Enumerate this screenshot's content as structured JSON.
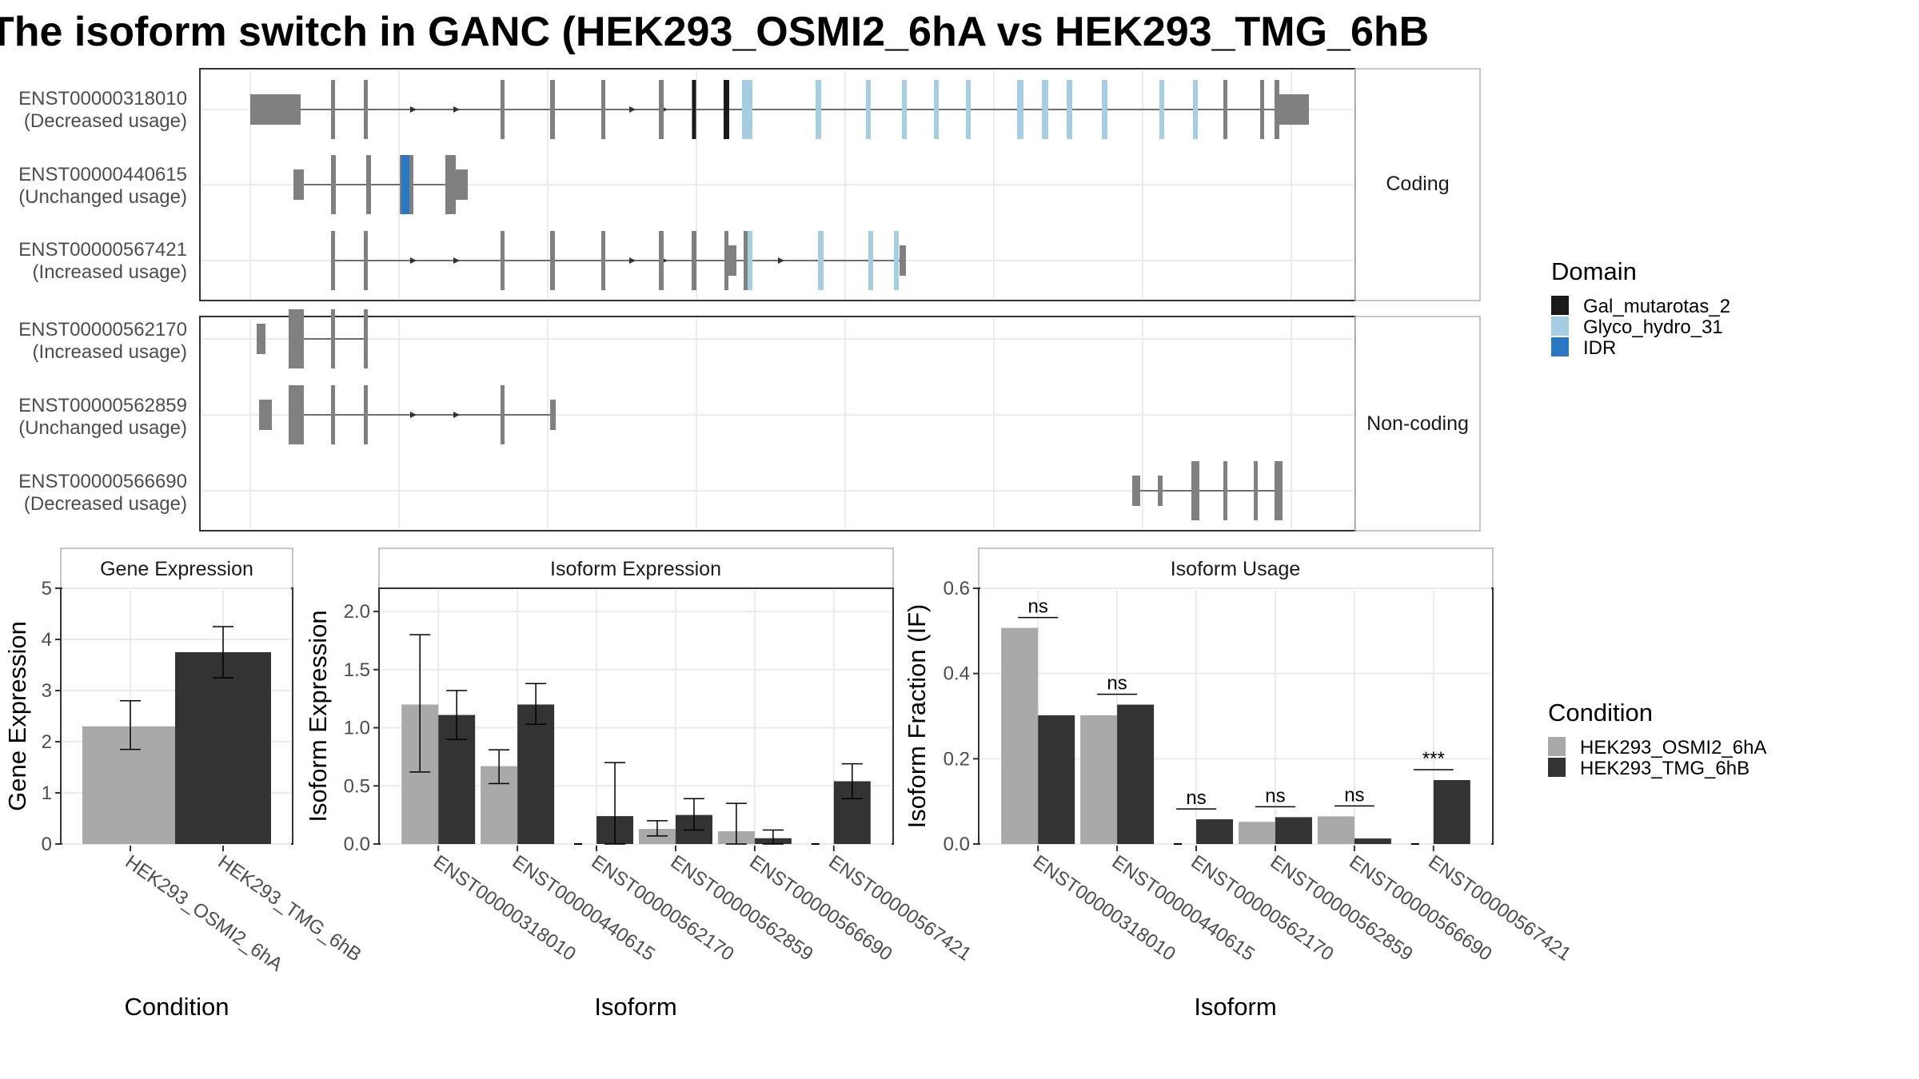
{
  "title": "The isoform switch in GANC (HEK293_OSMI2_6hA vs HEK293_TMG_6hB",
  "colors": {
    "exon": "#808080",
    "condition_a": "#A9A9A9",
    "condition_b": "#333333",
    "Gal_mutarotas_2": "#1a1a1a",
    "Glyco_hydro_31": "#a6cee3",
    "IDR": "#2b78c2"
  },
  "chart_data": [
    {
      "type": "gene-structure",
      "title": "The isoform switch in GANC (HEK293_OSMI2_6hA vs HEK293_TMG_6hB",
      "facets": [
        "Coding",
        "Non-coding"
      ],
      "transcripts": [
        {
          "id": "ENST00000318010",
          "usage": "(Decreased usage)",
          "facet": "Coding"
        },
        {
          "id": "ENST00000440615",
          "usage": "(Unchanged usage)",
          "facet": "Coding"
        },
        {
          "id": "ENST00000567421",
          "usage": "(Increased usage)",
          "facet": "Coding"
        },
        {
          "id": "ENST00000562170",
          "usage": "(Increased usage)",
          "facet": "Non-coding"
        },
        {
          "id": "ENST00000562859",
          "usage": "(Unchanged usage)",
          "facet": "Non-coding"
        },
        {
          "id": "ENST00000566690",
          "usage": "(Decreased usage)",
          "facet": "Non-coding"
        }
      ],
      "domain_legend": {
        "title": "Domain",
        "entries": [
          "Gal_mutarotas_2",
          "Glyco_hydro_31",
          "IDR"
        ]
      }
    },
    {
      "type": "bar",
      "title": "Gene Expression",
      "xlabel": "Condition",
      "ylabel": "Gene Expression",
      "ylim": [
        0,
        5
      ],
      "yticks": [
        "0",
        "1",
        "2",
        "3",
        "4",
        "5"
      ],
      "categories": [
        "HEK293_OSMI2_6hA",
        "HEK293_TMG_6hB"
      ],
      "values": [
        2.3,
        3.75
      ],
      "error_low": [
        1.85,
        3.25
      ],
      "error_high": [
        2.8,
        4.25
      ]
    },
    {
      "type": "bar",
      "title": "Isoform Expression",
      "xlabel": "Isoform",
      "ylabel": "Isoform Expression",
      "ylim": [
        0,
        2.2
      ],
      "yticks": [
        "0.0",
        "0.5",
        "1.0",
        "1.5",
        "2.0"
      ],
      "categories": [
        "ENST00000318010",
        "ENST00000440615",
        "ENST00000562170",
        "ENST00000562859",
        "ENST00000566690",
        "ENST00000567421"
      ],
      "series": [
        {
          "name": "HEK293_OSMI2_6hA",
          "values": [
            1.2,
            0.67,
            0.0,
            0.13,
            0.11,
            0.0
          ],
          "error_low": [
            0.62,
            0.52,
            0.0,
            0.07,
            0.0,
            0.0
          ],
          "error_high": [
            1.8,
            0.81,
            0.0,
            0.2,
            0.35,
            0.0
          ]
        },
        {
          "name": "HEK293_TMG_6hB",
          "values": [
            1.11,
            1.2,
            0.24,
            0.25,
            0.05,
            0.54
          ],
          "error_low": [
            0.9,
            1.03,
            0.0,
            0.12,
            0.0,
            0.39
          ],
          "error_high": [
            1.32,
            1.38,
            0.7,
            0.39,
            0.12,
            0.69
          ]
        }
      ]
    },
    {
      "type": "bar",
      "title": "Isoform Usage",
      "xlabel": "Isoform",
      "ylabel": "Isoform Fraction (IF)",
      "ylim": [
        0,
        0.6
      ],
      "yticks": [
        "0.0",
        "0.2",
        "0.4",
        "0.6"
      ],
      "categories": [
        "ENST00000318010",
        "ENST00000440615",
        "ENST00000562170",
        "ENST00000562859",
        "ENST00000566690",
        "ENST00000567421"
      ],
      "series": [
        {
          "name": "HEK293_OSMI2_6hA",
          "values": [
            0.507,
            0.302,
            0.0,
            0.052,
            0.065,
            0.0
          ]
        },
        {
          "name": "HEK293_TMG_6hB",
          "values": [
            0.302,
            0.327,
            0.058,
            0.063,
            0.013,
            0.15
          ]
        }
      ],
      "significance": [
        "ns",
        "ns",
        "ns",
        "ns",
        "ns",
        "***"
      ]
    }
  ],
  "condition_legend": {
    "title": "Condition",
    "entries": [
      "HEK293_OSMI2_6hA",
      "HEK293_TMG_6hB"
    ]
  }
}
